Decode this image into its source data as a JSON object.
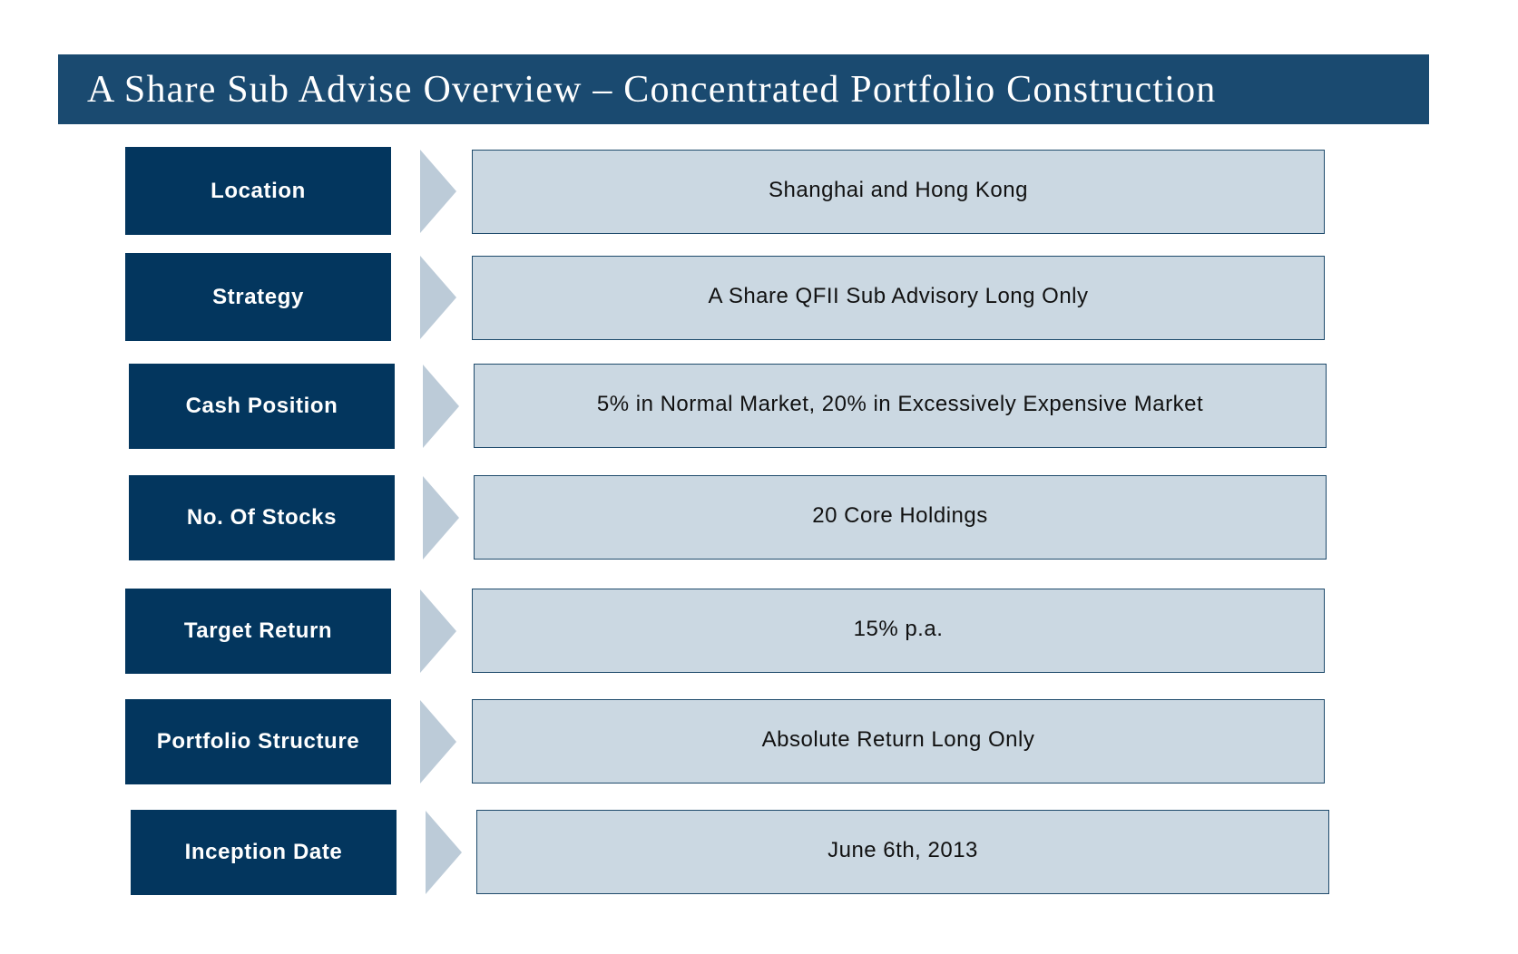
{
  "title": "A Share Sub Advise Overview – Concentrated Portfolio Construction",
  "colors": {
    "title_bar": "#1a4a70",
    "label_box": "#03365e",
    "arrow": "#bccbd8",
    "value_box": "#cbd8e2",
    "value_border": "#1f4b6c"
  },
  "rows": [
    {
      "label": "Location",
      "value": "Shanghai and Hong Kong"
    },
    {
      "label": "Strategy",
      "value": "A Share QFII Sub Advisory Long Only"
    },
    {
      "label": "Cash Position",
      "value": "5% in Normal Market, 20% in Excessively Expensive Market"
    },
    {
      "label": "No. Of Stocks",
      "value": "20 Core Holdings"
    },
    {
      "label": "Target Return",
      "value": "15% p.a."
    },
    {
      "label": "Portfolio Structure",
      "value": "Absolute Return Long Only"
    },
    {
      "label": "Inception Date",
      "value": "June 6th, 2013"
    }
  ]
}
